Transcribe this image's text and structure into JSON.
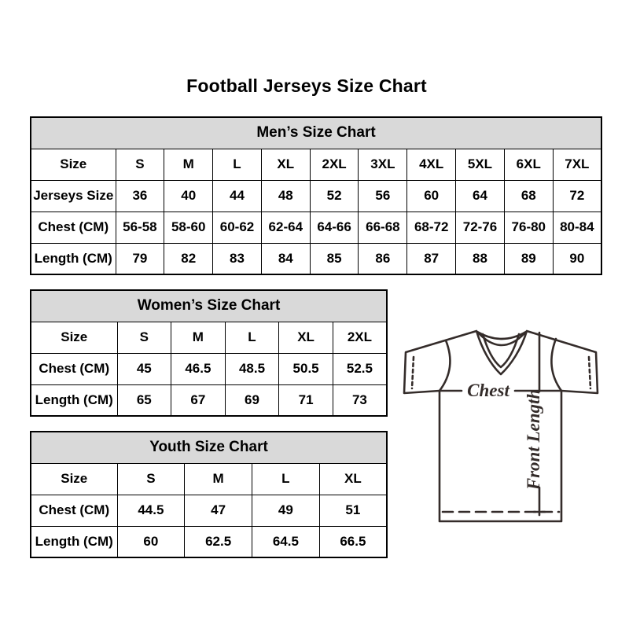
{
  "title": "Football Jerseys Size Chart",
  "tables": {
    "men": {
      "header": "Men’s Size Chart",
      "rows": [
        [
          "Size",
          "S",
          "M",
          "L",
          "XL",
          "2XL",
          "3XL",
          "4XL",
          "5XL",
          "6XL",
          "7XL"
        ],
        [
          "Jerseys Size",
          "36",
          "40",
          "44",
          "48",
          "52",
          "56",
          "60",
          "64",
          "68",
          "72"
        ],
        [
          "Chest (CM)",
          "56-58",
          "58-60",
          "60-62",
          "62-64",
          "64-66",
          "66-68",
          "68-72",
          "72-76",
          "76-80",
          "80-84"
        ],
        [
          "Length (CM)",
          "79",
          "82",
          "83",
          "84",
          "85",
          "86",
          "87",
          "88",
          "89",
          "90"
        ]
      ]
    },
    "women": {
      "header": "Women’s Size Chart",
      "rows": [
        [
          "Size",
          "S",
          "M",
          "L",
          "XL",
          "2XL"
        ],
        [
          "Chest (CM)",
          "45",
          "46.5",
          "48.5",
          "50.5",
          "52.5"
        ],
        [
          "Length (CM)",
          "65",
          "67",
          "69",
          "71",
          "73"
        ]
      ]
    },
    "youth": {
      "header": "Youth Size Chart",
      "rows": [
        [
          "Size",
          "S",
          "M",
          "L",
          "XL"
        ],
        [
          "Chest (CM)",
          "44.5",
          "47",
          "49",
          "51"
        ],
        [
          "Length (CM)",
          "60",
          "62.5",
          "64.5",
          "66.5"
        ]
      ]
    }
  },
  "diagram": {
    "chest_label": "Chest",
    "front_length_label": "Front Length"
  },
  "colors": {
    "table_header_bg": "#d9d9d9",
    "table_border": "#000000",
    "text": "#000000",
    "diagram_stroke": "#342c2a",
    "background": "#ffffff"
  }
}
